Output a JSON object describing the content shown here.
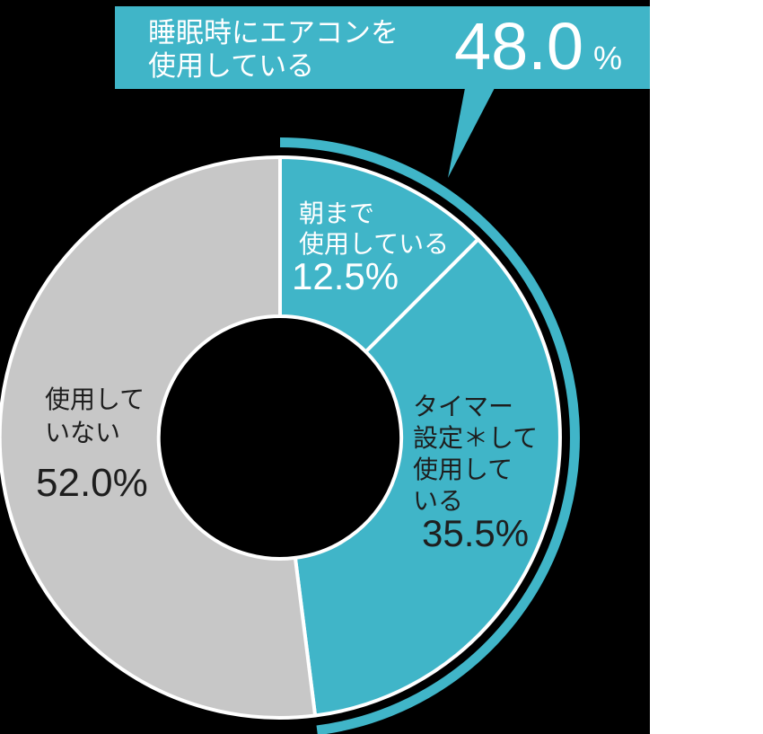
{
  "colors": {
    "teal": "#40B5C8",
    "gray": "#C7C7C7",
    "dark_text": "#1E1E1E",
    "white_text": "#FFFFFF",
    "canvas_background": "#000000",
    "right_margin_background": "#FFFFFF",
    "divider": "#FFFFFF"
  },
  "callout": {
    "line1": "睡眠時にエアコンを",
    "line2": "使用している",
    "value": "48.0",
    "unit": "%"
  },
  "chart_data": {
    "type": "pie",
    "donut": true,
    "start_angle_deg": 0,
    "direction": "clockwise",
    "title": "睡眠時にエアコンを使用している 48.0%",
    "segments": [
      {
        "label": "朝まで使用している",
        "label_lines": [
          "朝まで",
          "使用している"
        ],
        "value": 12.5,
        "value_text": "12.5%",
        "color": "#40B5C8",
        "text_color": "#FFFFFF"
      },
      {
        "label": "タイマー設定＊して使用している",
        "label_lines": [
          "タイマー",
          "設定＊して",
          "使用して",
          "いる"
        ],
        "value": 35.5,
        "value_text": "35.5%",
        "color": "#40B5C8",
        "text_color": "#1E1E1E"
      },
      {
        "label": "使用していない",
        "label_lines": [
          "使用して",
          "いない"
        ],
        "value": 52.0,
        "value_text": "52.0%",
        "color": "#C7C7C7",
        "text_color": "#1E1E1E"
      }
    ],
    "highlight_arc": {
      "label": "睡眠時にエアコンを使用している",
      "value": 48.0,
      "color": "#40B5C8"
    }
  }
}
